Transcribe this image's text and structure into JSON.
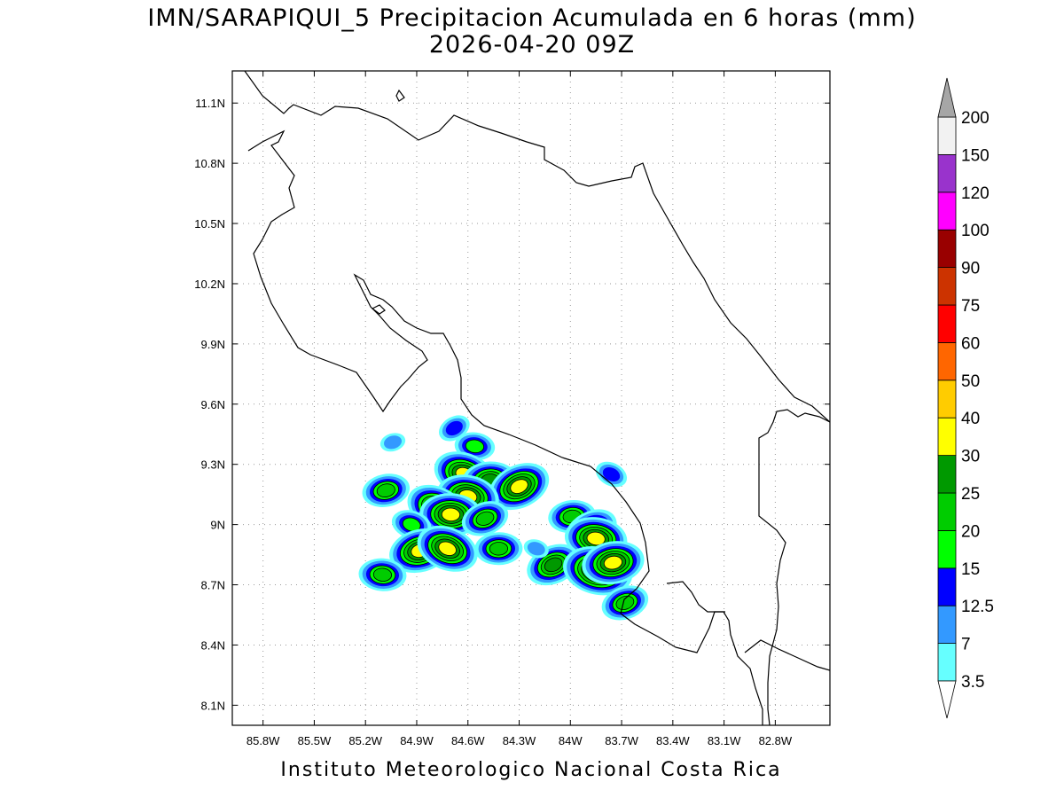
{
  "title": {
    "line1": "IMN/SARAPIQUI_5 Precipitacion Acumulada en 6 horas (mm)",
    "line2": "2026-04-20 09Z"
  },
  "footer": "Instituto Meteorologico Nacional Costa Rica",
  "axes": {
    "lon_ticks": [
      "85.8W",
      "85.5W",
      "85.2W",
      "84.9W",
      "84.6W",
      "84.3W",
      "84W",
      "83.7W",
      "83.4W",
      "83.1W",
      "82.8W"
    ],
    "lat_ticks": [
      "11.1N",
      "10.8N",
      "10.5N",
      "10.2N",
      "9.9N",
      "9.6N",
      "9.3N",
      "9N",
      "8.7N",
      "8.4N",
      "8.1N"
    ],
    "lon_range": [
      -85.98,
      -82.48
    ],
    "lat_range": [
      8.0,
      11.26
    ],
    "grid": true
  },
  "colorbar": {
    "labels": [
      "3.5",
      "7",
      "12.5",
      "15",
      "20",
      "25",
      "30",
      "40",
      "50",
      "60",
      "75",
      "90",
      "100",
      "120",
      "150",
      "200"
    ],
    "colors": [
      "#66ffff",
      "#3399ff",
      "#0000ff",
      "#00ff00",
      "#00cc00",
      "#009900",
      "#ffff00",
      "#ffcc00",
      "#ff6600",
      "#ff0000",
      "#cc3300",
      "#990000",
      "#ff00ff",
      "#9933cc",
      "#f2f2f2"
    ],
    "over_color": "#a6a6a6",
    "under_color": "#ffffff"
  },
  "cells": [
    {
      "lon": -84.68,
      "lat": 9.48,
      "max": 12.5
    },
    {
      "lon": -84.56,
      "lat": 9.39,
      "max": 15
    },
    {
      "lon": -85.04,
      "lat": 9.41,
      "max": 7
    },
    {
      "lon": -84.62,
      "lat": 9.25,
      "max": 30
    },
    {
      "lon": -84.47,
      "lat": 9.22,
      "max": 25
    },
    {
      "lon": -84.3,
      "lat": 9.19,
      "max": 30
    },
    {
      "lon": -84.6,
      "lat": 9.14,
      "max": 30
    },
    {
      "lon": -85.08,
      "lat": 9.17,
      "max": 20
    },
    {
      "lon": -84.78,
      "lat": 9.08,
      "max": 30
    },
    {
      "lon": -84.7,
      "lat": 9.05,
      "max": 30
    },
    {
      "lon": -84.5,
      "lat": 9.03,
      "max": 20
    },
    {
      "lon": -84.93,
      "lat": 9.0,
      "max": 15
    },
    {
      "lon": -83.99,
      "lat": 9.04,
      "max": 20
    },
    {
      "lon": -83.88,
      "lat": 8.97,
      "max": 25
    },
    {
      "lon": -83.85,
      "lat": 8.93,
      "max": 30
    },
    {
      "lon": -84.88,
      "lat": 8.87,
      "max": 30
    },
    {
      "lon": -84.72,
      "lat": 8.88,
      "max": 30
    },
    {
      "lon": -84.42,
      "lat": 8.88,
      "max": 20
    },
    {
      "lon": -84.1,
      "lat": 8.8,
      "max": 25
    },
    {
      "lon": -83.84,
      "lat": 8.77,
      "max": 40
    },
    {
      "lon": -83.75,
      "lat": 8.81,
      "max": 30
    },
    {
      "lon": -83.76,
      "lat": 9.25,
      "max": 12.5
    },
    {
      "lon": -85.1,
      "lat": 8.75,
      "max": 20
    },
    {
      "lon": -83.68,
      "lat": 8.61,
      "max": 20
    },
    {
      "lon": -84.2,
      "lat": 8.88,
      "max": 7
    }
  ]
}
